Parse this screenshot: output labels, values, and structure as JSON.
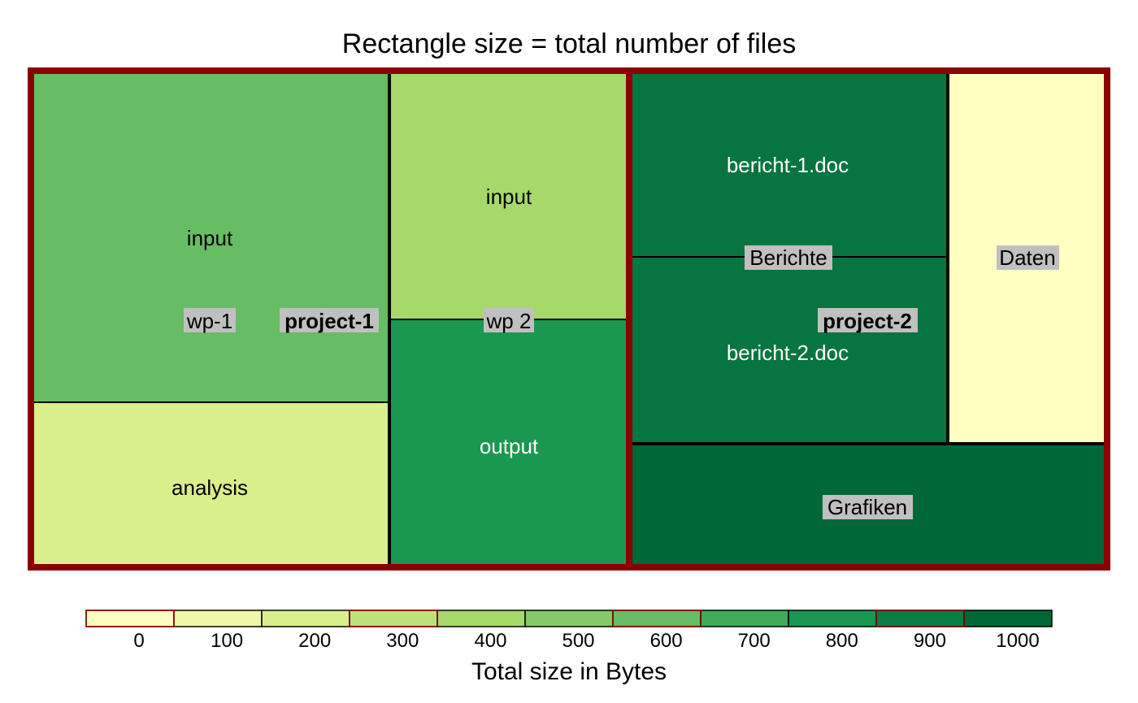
{
  "chart_data": {
    "type": "treemap",
    "title": "Rectangle size = total number of files",
    "legend": {
      "title": "Total size in Bytes",
      "ticks": [
        "0",
        "100",
        "200",
        "300",
        "400",
        "500",
        "600",
        "700",
        "800",
        "900",
        "1000"
      ],
      "colors": [
        "#ffffbf",
        "#f0f8a8",
        "#d9ef8b",
        "#bde27a",
        "#a6d96a",
        "#84ca66",
        "#66bd63",
        "#3fab5a",
        "#1a9850",
        "#0a7e42",
        "#006837"
      ]
    },
    "projects": [
      {
        "name": "project-1",
        "children": [
          {
            "name": "wp-1",
            "children": [
              {
                "name": "input",
                "value": 500,
                "color": "#66bd63"
              },
              {
                "name": "analysis",
                "value": 200,
                "color": "#d9ef8b"
              }
            ]
          },
          {
            "name": "wp 2",
            "children": [
              {
                "name": "input",
                "value": 400,
                "color": "#a6d96a"
              },
              {
                "name": "output",
                "value": 800,
                "color": "#1a9850"
              }
            ]
          }
        ]
      },
      {
        "name": "project-2",
        "children": [
          {
            "name": "Berichte",
            "children": [
              {
                "name": "bericht-1.doc",
                "value": 900,
                "color": "#067540"
              },
              {
                "name": "bericht-2.doc",
                "value": 900,
                "color": "#067540"
              }
            ]
          },
          {
            "name": "Daten",
            "value": 0,
            "color": "#ffffbf"
          },
          {
            "name": "Grafiken",
            "value": 1000,
            "color": "#006837"
          }
        ]
      }
    ]
  }
}
